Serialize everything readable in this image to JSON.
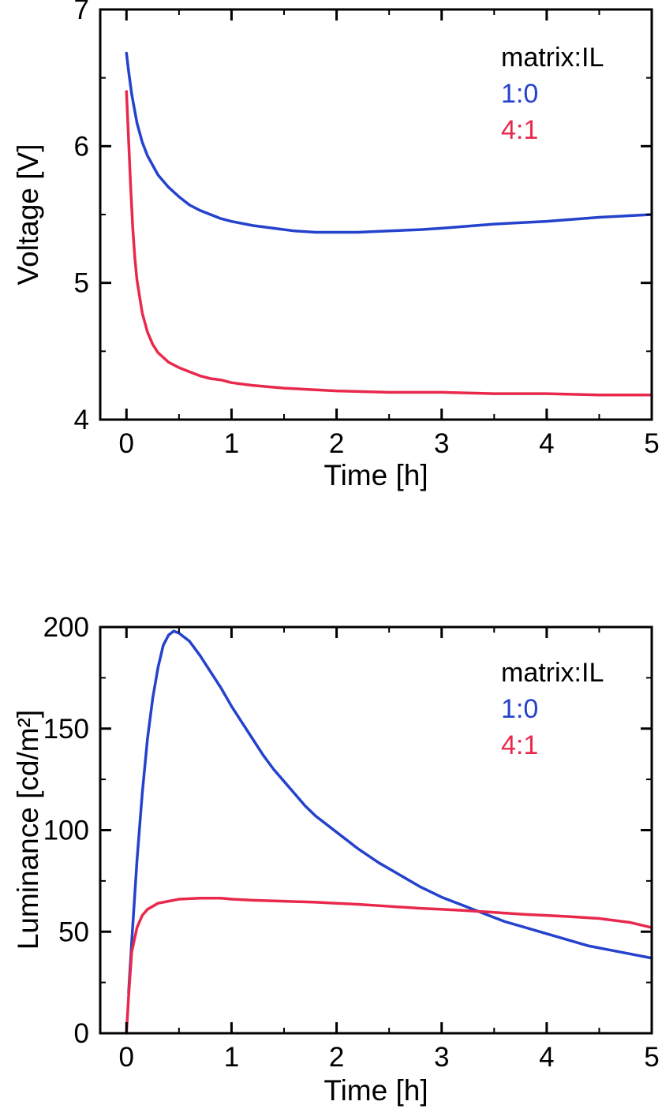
{
  "figure": {
    "background": "#ffffff"
  },
  "legend": {
    "title": "matrix:IL",
    "entries": [
      {
        "label": "1:0",
        "color": "#2442cc"
      },
      {
        "label": "4:1",
        "color": "#e8294c"
      }
    ]
  },
  "chart_data": [
    {
      "type": "line",
      "title": "",
      "xlabel": "Time [h]",
      "ylabel": "Voltage [V]",
      "xlim": [
        -0.25,
        5
      ],
      "ylim": [
        4,
        7
      ],
      "x_ticks": [
        0,
        1,
        2,
        3,
        4,
        5
      ],
      "y_ticks": [
        4,
        5,
        6,
        7
      ],
      "x_minor_step": 0.5,
      "y_minor_step": 0.5,
      "grid": false,
      "legend_position": "top-right",
      "series": [
        {
          "name": "1:0",
          "color": "#2442cc",
          "x": [
            0,
            0.02,
            0.05,
            0.1,
            0.15,
            0.2,
            0.3,
            0.4,
            0.5,
            0.6,
            0.7,
            0.8,
            0.9,
            1.0,
            1.2,
            1.4,
            1.6,
            1.8,
            2.0,
            2.2,
            2.5,
            2.8,
            3.0,
            3.5,
            4.0,
            4.5,
            5.0
          ],
          "y": [
            6.68,
            6.55,
            6.38,
            6.17,
            6.03,
            5.93,
            5.79,
            5.7,
            5.63,
            5.57,
            5.53,
            5.5,
            5.47,
            5.45,
            5.42,
            5.4,
            5.38,
            5.37,
            5.37,
            5.37,
            5.38,
            5.39,
            5.4,
            5.43,
            5.45,
            5.48,
            5.5
          ]
        },
        {
          "name": "4:1",
          "color": "#e8294c",
          "x": [
            0,
            0.02,
            0.04,
            0.06,
            0.08,
            0.1,
            0.15,
            0.2,
            0.25,
            0.3,
            0.4,
            0.5,
            0.6,
            0.7,
            0.8,
            0.9,
            1.0,
            1.2,
            1.5,
            2.0,
            2.5,
            3.0,
            3.5,
            4.0,
            4.5,
            5.0
          ],
          "y": [
            6.4,
            6.05,
            5.7,
            5.4,
            5.18,
            5.02,
            4.78,
            4.64,
            4.55,
            4.49,
            4.42,
            4.38,
            4.35,
            4.32,
            4.3,
            4.29,
            4.27,
            4.25,
            4.23,
            4.21,
            4.2,
            4.2,
            4.19,
            4.19,
            4.18,
            4.18
          ]
        }
      ]
    },
    {
      "type": "line",
      "title": "",
      "xlabel": "Time [h]",
      "ylabel": "Luminance [cd/m²]",
      "xlim": [
        -0.25,
        5
      ],
      "ylim": [
        0,
        200
      ],
      "x_ticks": [
        0,
        1,
        2,
        3,
        4,
        5
      ],
      "y_ticks": [
        0,
        50,
        100,
        150,
        200
      ],
      "x_minor_step": 0.5,
      "y_minor_step": 25,
      "grid": false,
      "legend_position": "top-right",
      "series": [
        {
          "name": "1:0",
          "color": "#2442cc",
          "x": [
            0.02,
            0.05,
            0.1,
            0.15,
            0.2,
            0.25,
            0.3,
            0.35,
            0.4,
            0.45,
            0.5,
            0.6,
            0.7,
            0.8,
            0.9,
            1.0,
            1.1,
            1.2,
            1.3,
            1.4,
            1.5,
            1.6,
            1.7,
            1.8,
            1.9,
            2.0,
            2.2,
            2.4,
            2.6,
            2.8,
            3.0,
            3.2,
            3.4,
            3.6,
            3.8,
            4.0,
            4.2,
            4.4,
            4.6,
            4.8,
            5.0
          ],
          "y": [
            20,
            45,
            85,
            118,
            145,
            165,
            180,
            191,
            196,
            198,
            197,
            193,
            186,
            178,
            170,
            161,
            153,
            145,
            137,
            130,
            124,
            118,
            112,
            107,
            103,
            99,
            91,
            84,
            78,
            72,
            67,
            63,
            59,
            55,
            52,
            49,
            46,
            43,
            41,
            39,
            37
          ]
        },
        {
          "name": "4:1",
          "color": "#e8294c",
          "x": [
            0,
            0.02,
            0.05,
            0.1,
            0.15,
            0.2,
            0.3,
            0.4,
            0.5,
            0.7,
            0.9,
            1.0,
            1.2,
            1.5,
            1.8,
            2.0,
            2.2,
            2.5,
            2.8,
            3.0,
            3.2,
            3.5,
            3.8,
            4.0,
            4.2,
            4.5,
            4.8,
            5.0
          ],
          "y": [
            0,
            18,
            40,
            52,
            58,
            61,
            64,
            65,
            66,
            66.5,
            66.5,
            66,
            65.5,
            65,
            64.5,
            64,
            63.5,
            62.5,
            61.5,
            61,
            60.5,
            59.5,
            58.5,
            58,
            57.5,
            56.5,
            54.5,
            52
          ]
        }
      ]
    }
  ]
}
